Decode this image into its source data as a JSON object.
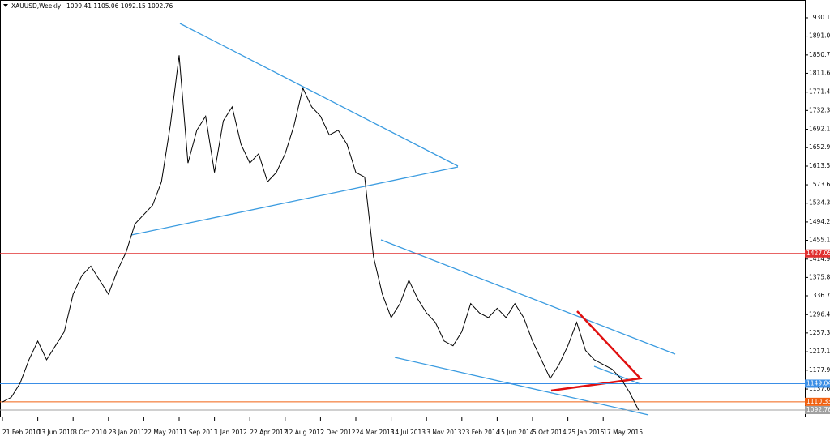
{
  "chart_data": {
    "type": "line",
    "title": "XAUUSD,Weekly",
    "subtitle": "1099.41 1105.06 1092.15 1092.76",
    "categories": [
      "21 Feb 2010",
      null,
      null,
      null,
      "13 Jun 2010",
      null,
      null,
      null,
      "3 Oct 2010",
      null,
      null,
      null,
      "23 Jan 2011",
      null,
      null,
      null,
      "22 May 2011",
      null,
      null,
      null,
      "11 Sep 2011",
      null,
      null,
      null,
      "1 Jan 2012",
      null,
      null,
      null,
      "22 Apr 2012",
      null,
      null,
      null,
      "12 Aug 2012",
      null,
      null,
      null,
      "2 Dec 2012",
      null,
      null,
      null,
      "24 Mar 2013",
      null,
      null,
      null,
      "14 Jul 2013",
      null,
      null,
      null,
      "3 Nov 2013",
      null,
      null,
      null,
      "23 Feb 2014",
      null,
      null,
      null,
      "15 Jun 2014",
      null,
      null,
      null,
      "5 Oct 2014",
      null,
      null,
      null,
      "25 Jan 2015",
      null,
      null,
      null,
      "17 May 2015",
      null,
      null,
      null,
      null
    ],
    "series": [
      {
        "name": "XAUUSD",
        "color": "#000000",
        "values": [
          1110,
          1120,
          1150,
          1200,
          1240,
          1200,
          1230,
          1260,
          1340,
          1380,
          1400,
          1370,
          1340,
          1390,
          1430,
          1490,
          1510,
          1530,
          1580,
          1700,
          1850,
          1620,
          1690,
          1720,
          1600,
          1710,
          1740,
          1660,
          1620,
          1640,
          1580,
          1600,
          1640,
          1700,
          1780,
          1740,
          1720,
          1680,
          1690,
          1660,
          1600,
          1590,
          1420,
          1340,
          1290,
          1320,
          1370,
          1330,
          1300,
          1280,
          1240,
          1230,
          1260,
          1320,
          1300,
          1290,
          1310,
          1290,
          1320,
          1290,
          1240,
          1200,
          1160,
          1190,
          1230,
          1280,
          1220,
          1200,
          1190,
          1180,
          1160,
          1130,
          1092.76
        ]
      }
    ],
    "ylim": [
      1077.2,
      1961.2
    ],
    "yticks": [
      1930.1,
      1891.05,
      1850.75,
      1811.65,
      1771.4,
      1732.3,
      1692.15,
      1652.95,
      1613.5,
      1573.6,
      1534.35,
      1494.25,
      1455.15,
      1414.9,
      1375.8,
      1336.7,
      1296.45,
      1257.35,
      1217.1,
      1177.9,
      1137.65
    ],
    "levels": [
      {
        "value": 1427.05,
        "label": "1427.05",
        "color": "#e03030"
      },
      {
        "value": 1149.04,
        "label": "1149.04",
        "color": "#3a8ee6"
      },
      {
        "value": 1110.33,
        "label": "1110.33",
        "color": "#f06010"
      },
      {
        "value": 1092.76,
        "label": "1092.76",
        "color": "#a0a0a0"
      }
    ]
  }
}
